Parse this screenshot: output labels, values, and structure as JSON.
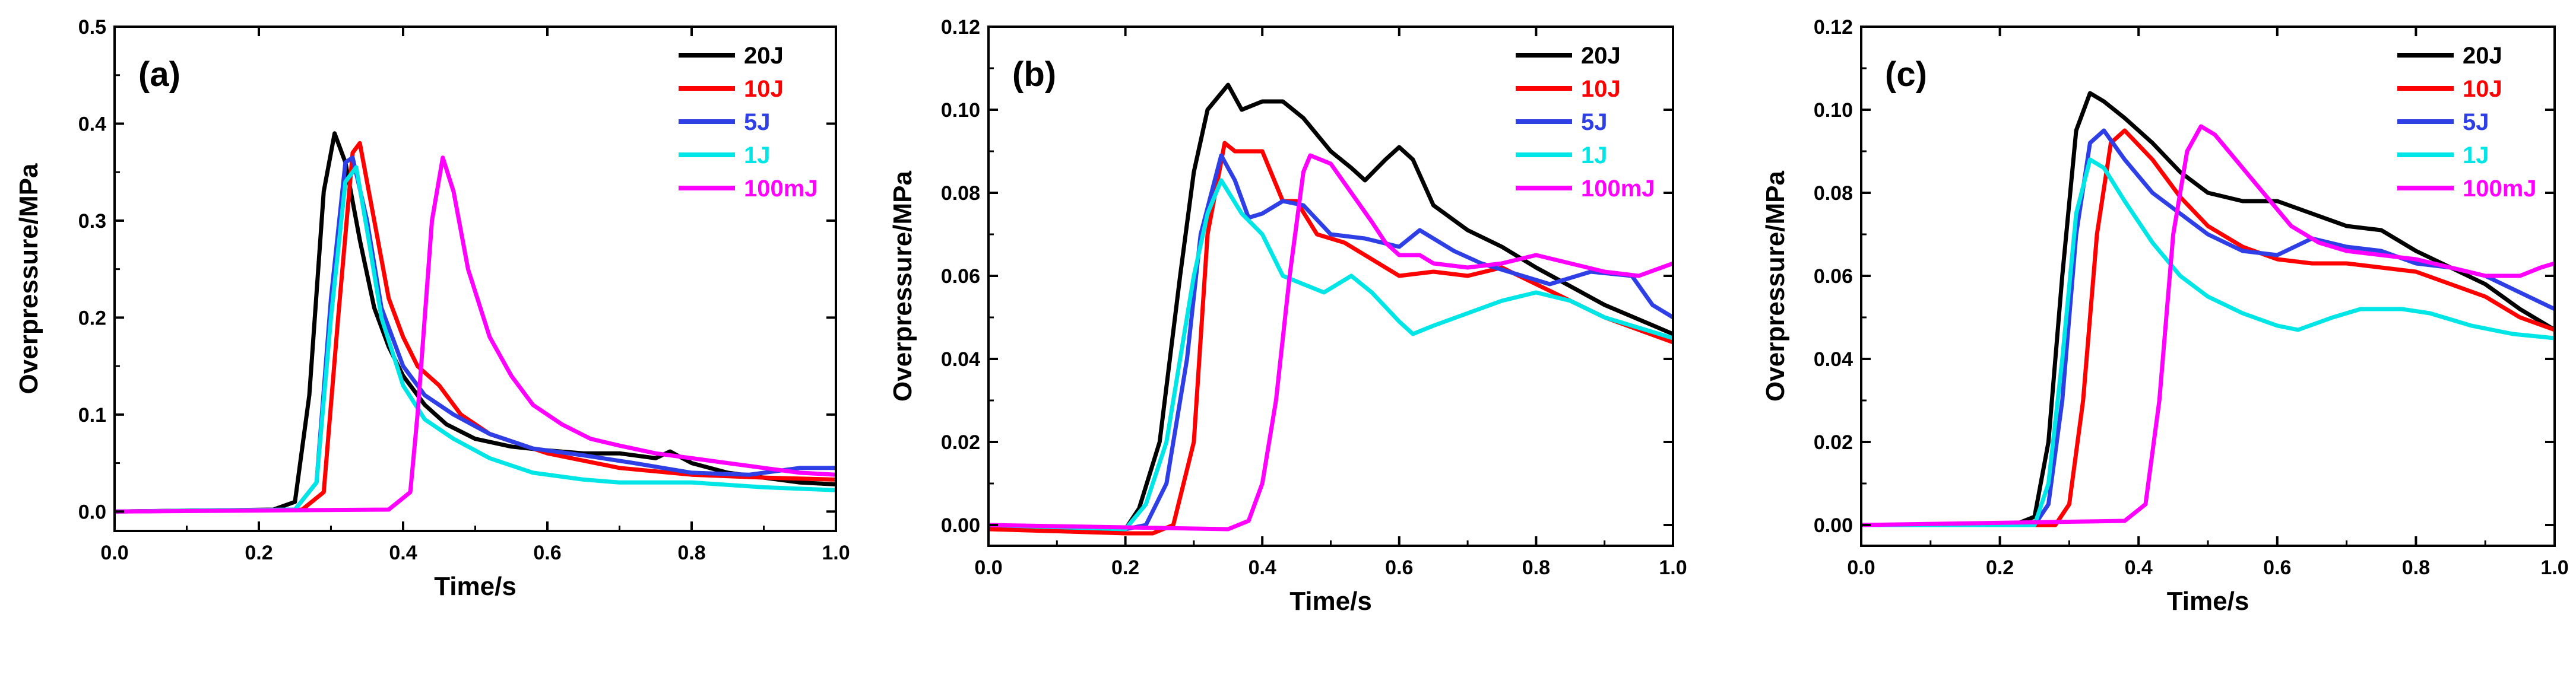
{
  "colors": {
    "20J": "#000000",
    "10J": "#ff0000",
    "5J": "#2f3fe6",
    "1J": "#00e6e6",
    "100mJ": "#ff00ff"
  },
  "chart_data": [
    {
      "type": "line",
      "panel_label": "(a)",
      "xlabel": "Time/s",
      "ylabel": "Overpressure/MPa",
      "xlim": [
        0.0,
        1.0
      ],
      "ylim": [
        -0.02,
        0.5
      ],
      "xticks": [
        "0.0",
        "0.2",
        "0.4",
        "0.6",
        "0.8",
        "1.0"
      ],
      "yticks": [
        "0.0",
        "0.1",
        "0.2",
        "0.3",
        "0.4",
        "0.5"
      ],
      "legend_position": "top-right",
      "series": [
        {
          "name": "20J",
          "color": "#000000",
          "x": [
            0,
            0.22,
            0.25,
            0.27,
            0.29,
            0.305,
            0.32,
            0.34,
            0.36,
            0.38,
            0.4,
            0.43,
            0.46,
            0.5,
            0.55,
            0.6,
            0.65,
            0.7,
            0.75,
            0.77,
            0.8,
            0.85,
            0.9,
            0.95,
            1.0
          ],
          "y": [
            0,
            0.002,
            0.01,
            0.12,
            0.33,
            0.39,
            0.36,
            0.28,
            0.21,
            0.17,
            0.14,
            0.11,
            0.09,
            0.075,
            0.067,
            0.063,
            0.06,
            0.06,
            0.055,
            0.062,
            0.05,
            0.04,
            0.035,
            0.03,
            0.028
          ]
        },
        {
          "name": "10J",
          "color": "#ff0000",
          "x": [
            0,
            0.26,
            0.29,
            0.31,
            0.33,
            0.34,
            0.36,
            0.38,
            0.4,
            0.42,
            0.45,
            0.48,
            0.52,
            0.56,
            0.6,
            0.7,
            0.8,
            0.9,
            1.0
          ],
          "y": [
            0,
            0.002,
            0.02,
            0.2,
            0.37,
            0.38,
            0.3,
            0.22,
            0.18,
            0.15,
            0.13,
            0.1,
            0.08,
            0.07,
            0.06,
            0.045,
            0.038,
            0.035,
            0.033
          ]
        },
        {
          "name": "5J",
          "color": "#2f3fe6",
          "x": [
            0,
            0.25,
            0.28,
            0.3,
            0.32,
            0.33,
            0.35,
            0.37,
            0.4,
            0.43,
            0.47,
            0.52,
            0.58,
            0.65,
            0.72,
            0.8,
            0.88,
            0.95,
            1.0
          ],
          "y": [
            0,
            0.002,
            0.03,
            0.22,
            0.36,
            0.365,
            0.3,
            0.21,
            0.15,
            0.12,
            0.1,
            0.08,
            0.065,
            0.058,
            0.05,
            0.04,
            0.038,
            0.045,
            0.045
          ]
        },
        {
          "name": "1J",
          "color": "#00e6e6",
          "x": [
            0,
            0.25,
            0.28,
            0.3,
            0.32,
            0.335,
            0.35,
            0.37,
            0.4,
            0.43,
            0.47,
            0.52,
            0.58,
            0.65,
            0.7,
            0.8,
            0.9,
            1.0
          ],
          "y": [
            0,
            0.002,
            0.03,
            0.2,
            0.34,
            0.355,
            0.29,
            0.2,
            0.13,
            0.095,
            0.075,
            0.055,
            0.04,
            0.033,
            0.03,
            0.03,
            0.025,
            0.022
          ]
        },
        {
          "name": "100mJ",
          "color": "#ff00ff",
          "x": [
            0,
            0.38,
            0.41,
            0.42,
            0.44,
            0.455,
            0.47,
            0.49,
            0.52,
            0.55,
            0.58,
            0.62,
            0.66,
            0.7,
            0.75,
            0.8,
            0.85,
            0.9,
            0.95,
            1.0
          ],
          "y": [
            0,
            0.002,
            0.02,
            0.1,
            0.3,
            0.365,
            0.33,
            0.25,
            0.18,
            0.14,
            0.11,
            0.09,
            0.075,
            0.068,
            0.06,
            0.055,
            0.05,
            0.045,
            0.04,
            0.038
          ]
        }
      ]
    },
    {
      "type": "line",
      "panel_label": "(b)",
      "xlabel": "Time/s",
      "ylabel": "Overpressure/MPa",
      "xlim": [
        0.0,
        1.0
      ],
      "ylim": [
        -0.005,
        0.12
      ],
      "xticks": [
        "0.0",
        "0.2",
        "0.4",
        "0.6",
        "0.8",
        "1.0"
      ],
      "yticks": [
        "0.00",
        "0.02",
        "0.04",
        "0.06",
        "0.08",
        "0.10",
        "0.12"
      ],
      "legend_position": "top-right",
      "series": [
        {
          "name": "20J",
          "color": "#000000",
          "x": [
            0,
            0.1,
            0.2,
            0.22,
            0.25,
            0.28,
            0.3,
            0.32,
            0.35,
            0.37,
            0.4,
            0.43,
            0.46,
            0.5,
            0.53,
            0.55,
            0.58,
            0.6,
            0.62,
            0.65,
            0.7,
            0.75,
            0.8,
            0.9,
            1.0
          ],
          "y": [
            0,
            -0.001,
            -0.001,
            0.004,
            0.02,
            0.06,
            0.085,
            0.1,
            0.106,
            0.1,
            0.102,
            0.102,
            0.098,
            0.09,
            0.086,
            0.083,
            0.088,
            0.091,
            0.088,
            0.077,
            0.071,
            0.067,
            0.062,
            0.053,
            0.046
          ]
        },
        {
          "name": "10J",
          "color": "#ff0000",
          "x": [
            0,
            0.2,
            0.24,
            0.27,
            0.3,
            0.32,
            0.345,
            0.36,
            0.4,
            0.43,
            0.45,
            0.48,
            0.52,
            0.56,
            0.6,
            0.65,
            0.7,
            0.75,
            0.8,
            0.85,
            0.9,
            0.95,
            1.0
          ],
          "y": [
            -0.001,
            -0.002,
            -0.002,
            0.0,
            0.02,
            0.07,
            0.092,
            0.09,
            0.09,
            0.078,
            0.078,
            0.07,
            0.068,
            0.064,
            0.06,
            0.061,
            0.06,
            0.062,
            0.058,
            0.054,
            0.05,
            0.047,
            0.044
          ]
        },
        {
          "name": "5J",
          "color": "#2f3fe6",
          "x": [
            0,
            0.2,
            0.23,
            0.26,
            0.29,
            0.31,
            0.34,
            0.36,
            0.38,
            0.4,
            0.43,
            0.46,
            0.5,
            0.55,
            0.6,
            0.63,
            0.68,
            0.72,
            0.78,
            0.82,
            0.88,
            0.94,
            0.97,
            1.0
          ],
          "y": [
            0,
            -0.001,
            0.0,
            0.01,
            0.04,
            0.07,
            0.089,
            0.083,
            0.074,
            0.075,
            0.078,
            0.077,
            0.07,
            0.069,
            0.067,
            0.071,
            0.066,
            0.063,
            0.06,
            0.058,
            0.061,
            0.06,
            0.053,
            0.05
          ]
        },
        {
          "name": "1J",
          "color": "#00e6e6",
          "x": [
            0,
            0.2,
            0.23,
            0.26,
            0.28,
            0.3,
            0.32,
            0.34,
            0.37,
            0.4,
            0.43,
            0.46,
            0.49,
            0.51,
            0.53,
            0.56,
            0.6,
            0.62,
            0.65,
            0.7,
            0.75,
            0.8,
            0.85,
            0.9,
            1.0
          ],
          "y": [
            0,
            -0.001,
            0.005,
            0.02,
            0.04,
            0.06,
            0.075,
            0.083,
            0.075,
            0.07,
            0.06,
            0.058,
            0.056,
            0.058,
            0.06,
            0.056,
            0.049,
            0.046,
            0.048,
            0.051,
            0.054,
            0.056,
            0.054,
            0.05,
            0.045
          ]
        },
        {
          "name": "100mJ",
          "color": "#ff00ff",
          "x": [
            0,
            0.35,
            0.38,
            0.4,
            0.42,
            0.44,
            0.46,
            0.47,
            0.5,
            0.53,
            0.56,
            0.58,
            0.6,
            0.63,
            0.65,
            0.7,
            0.75,
            0.8,
            0.85,
            0.9,
            0.95,
            1.0
          ],
          "y": [
            0,
            -0.001,
            0.001,
            0.01,
            0.03,
            0.06,
            0.085,
            0.089,
            0.087,
            0.08,
            0.073,
            0.068,
            0.065,
            0.065,
            0.063,
            0.062,
            0.063,
            0.065,
            0.063,
            0.061,
            0.06,
            0.063
          ]
        }
      ]
    },
    {
      "type": "line",
      "panel_label": "(c)",
      "xlabel": "Time/s",
      "ylabel": "Overpressure/MPa",
      "xlim": [
        0.0,
        1.0
      ],
      "ylim": [
        -0.005,
        0.12
      ],
      "xticks": [
        "0.0",
        "0.2",
        "0.4",
        "0.6",
        "0.8",
        "1.0"
      ],
      "yticks": [
        "0.00",
        "0.02",
        "0.04",
        "0.06",
        "0.08",
        "0.10",
        "0.12"
      ],
      "legend_position": "top-right",
      "series": [
        {
          "name": "20J",
          "color": "#000000",
          "x": [
            0,
            0.22,
            0.25,
            0.27,
            0.29,
            0.31,
            0.33,
            0.35,
            0.38,
            0.42,
            0.46,
            0.5,
            0.55,
            0.6,
            0.65,
            0.7,
            0.75,
            0.8,
            0.85,
            0.9,
            0.95,
            1.0
          ],
          "y": [
            0,
            0.0,
            0.002,
            0.02,
            0.06,
            0.095,
            0.104,
            0.102,
            0.098,
            0.092,
            0.085,
            0.08,
            0.078,
            0.078,
            0.075,
            0.072,
            0.071,
            0.066,
            0.062,
            0.058,
            0.052,
            0.047
          ]
        },
        {
          "name": "10J",
          "color": "#ff0000",
          "x": [
            0,
            0.28,
            0.3,
            0.32,
            0.34,
            0.36,
            0.38,
            0.42,
            0.46,
            0.5,
            0.55,
            0.6,
            0.65,
            0.7,
            0.75,
            0.8,
            0.85,
            0.9,
            0.95,
            1.0
          ],
          "y": [
            0,
            0.0,
            0.005,
            0.03,
            0.07,
            0.092,
            0.095,
            0.088,
            0.079,
            0.072,
            0.067,
            0.064,
            0.063,
            0.063,
            0.062,
            0.061,
            0.058,
            0.055,
            0.05,
            0.047
          ]
        },
        {
          "name": "5J",
          "color": "#2f3fe6",
          "x": [
            0,
            0.25,
            0.27,
            0.29,
            0.31,
            0.33,
            0.35,
            0.38,
            0.42,
            0.46,
            0.5,
            0.55,
            0.6,
            0.65,
            0.7,
            0.75,
            0.8,
            0.85,
            0.9,
            0.95,
            1.0
          ],
          "y": [
            0,
            0.0,
            0.005,
            0.03,
            0.07,
            0.092,
            0.095,
            0.088,
            0.08,
            0.075,
            0.07,
            0.066,
            0.065,
            0.069,
            0.067,
            0.066,
            0.063,
            0.062,
            0.06,
            0.056,
            0.052
          ]
        },
        {
          "name": "1J",
          "color": "#00e6e6",
          "x": [
            0,
            0.25,
            0.27,
            0.29,
            0.31,
            0.33,
            0.35,
            0.38,
            0.42,
            0.46,
            0.5,
            0.55,
            0.6,
            0.63,
            0.68,
            0.72,
            0.78,
            0.82,
            0.88,
            0.94,
            1.0
          ],
          "y": [
            0,
            0.0,
            0.01,
            0.04,
            0.075,
            0.088,
            0.086,
            0.078,
            0.068,
            0.06,
            0.055,
            0.051,
            0.048,
            0.047,
            0.05,
            0.052,
            0.052,
            0.051,
            0.048,
            0.046,
            0.045
          ]
        },
        {
          "name": "100mJ",
          "color": "#ff00ff",
          "x": [
            0,
            0.38,
            0.41,
            0.43,
            0.45,
            0.47,
            0.49,
            0.51,
            0.54,
            0.58,
            0.62,
            0.66,
            0.7,
            0.75,
            0.8,
            0.85,
            0.9,
            0.95,
            0.98,
            1.0
          ],
          "y": [
            0,
            0.001,
            0.005,
            0.03,
            0.07,
            0.09,
            0.096,
            0.094,
            0.088,
            0.08,
            0.072,
            0.068,
            0.066,
            0.065,
            0.064,
            0.062,
            0.06,
            0.06,
            0.062,
            0.063
          ]
        }
      ]
    }
  ]
}
